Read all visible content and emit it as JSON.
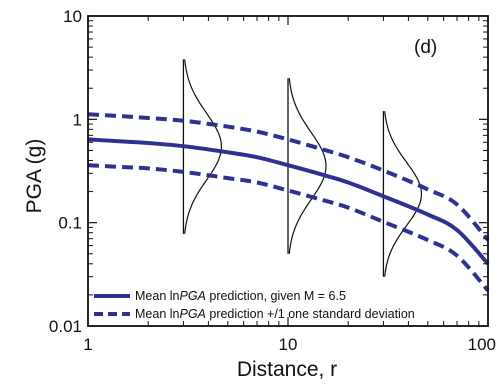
{
  "chart_data": {
    "type": "line",
    "title": "",
    "panel_label": "(d)",
    "xlabel": "Distance, r",
    "ylabel": "PGA (g)",
    "xscale": "log",
    "yscale": "log",
    "xlim": [
      1,
      100
    ],
    "ylim": [
      0.01,
      10
    ],
    "x_ticks": [
      "1",
      "10",
      "100"
    ],
    "y_ticks": [
      "0.01",
      "0.1",
      "1",
      "10"
    ],
    "x": [
      1,
      1.5,
      2,
      3,
      5,
      7,
      10,
      15,
      20,
      30,
      50,
      70,
      100
    ],
    "series": [
      {
        "name": "Mean lnPGA prediction, given M = 6.5",
        "style": "solid",
        "values": [
          0.64,
          0.61,
          0.59,
          0.55,
          0.48,
          0.43,
          0.36,
          0.29,
          0.245,
          0.18,
          0.12,
          0.085,
          0.04
        ]
      },
      {
        "name": "Mean lnPGA prediction +/1 one standard deviation",
        "style": "dashed",
        "values": [
          1.12,
          1.07,
          1.03,
          0.97,
          0.85,
          0.76,
          0.64,
          0.51,
          0.43,
          0.32,
          0.21,
          0.15,
          0.068
        ]
      },
      {
        "name": "",
        "style": "dashed",
        "values": [
          0.36,
          0.345,
          0.335,
          0.31,
          0.27,
          0.245,
          0.205,
          0.165,
          0.14,
          0.102,
          0.068,
          0.048,
          0.022
        ]
      }
    ],
    "distributions": [
      {
        "x": 3,
        "y_low": 0.078,
        "y_high": 3.8
      },
      {
        "x": 10,
        "y_low": 0.05,
        "y_high": 2.5
      },
      {
        "x": 30,
        "y_low": 0.03,
        "y_high": 1.2
      }
    ],
    "legend": {
      "placement": "bottom-left",
      "entries": [
        {
          "style": "solid",
          "prefix": "Mean ln",
          "italic": "PGA",
          "suffix": " prediction, given M = 6.5"
        },
        {
          "style": "dashed",
          "prefix": "Mean ln",
          "italic": "PGA",
          "suffix": " prediction +/1 one standard deviation"
        }
      ]
    },
    "colors": {
      "line": "#2e3192",
      "axis": "#111111",
      "curve": "#111111"
    },
    "grid": false
  }
}
